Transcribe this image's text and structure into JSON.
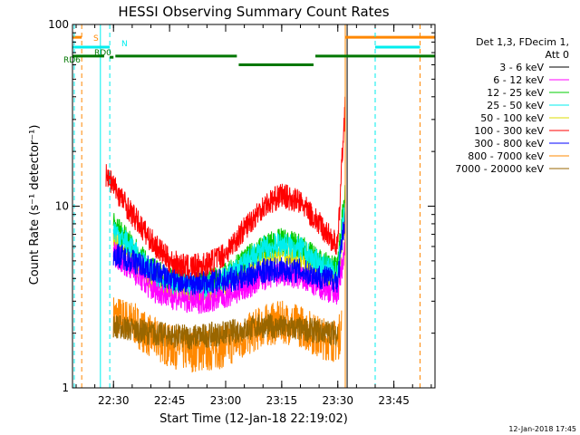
{
  "chart_data": {
    "type": "line",
    "title": "HESSI Observing Summary Count Rates",
    "xlabel": "Start Time (12-Jan-18 22:19:02)",
    "ylabel": "Count Rate (s⁻¹ detector⁻¹)",
    "y_scale": "log",
    "ylim": [
      1,
      100
    ],
    "xlim": [
      "22:19:02",
      "23:56:00"
    ],
    "x_ticks": [
      "22:30",
      "22:45",
      "23:00",
      "23:15",
      "23:30",
      "23:45"
    ],
    "y_ticks": [
      "1",
      "10",
      "100"
    ],
    "grid": false,
    "legend_position": "right",
    "legend_header": [
      "Det 1,3, FDecim 1,",
      "Att 0"
    ],
    "timestamp": "12-Jan-2018 17:45",
    "series": [
      {
        "name": "3 - 6 keV",
        "color": "#000000",
        "x": [],
        "y": []
      },
      {
        "name": "6 - 12 keV",
        "color": "#ff00ff",
        "x": [
          "22:30",
          "22:35",
          "22:40",
          "22:45",
          "22:50",
          "22:55",
          "23:00",
          "23:05",
          "23:10",
          "23:15",
          "23:20",
          "23:25",
          "23:30",
          "23:31",
          "23:32"
        ],
        "y": [
          5.5,
          4.5,
          3.5,
          3.2,
          3.0,
          3.0,
          3.2,
          3.5,
          4.0,
          4.2,
          4.0,
          3.6,
          3.3,
          4.5,
          6.0
        ]
      },
      {
        "name": "12 - 25 keV",
        "color": "#00cc00",
        "x": [
          "22:30",
          "22:35",
          "22:40",
          "22:45",
          "22:50",
          "22:55",
          "23:00",
          "23:05",
          "23:10",
          "23:15",
          "23:20",
          "23:25",
          "23:30",
          "23:31",
          "23:32"
        ],
        "y": [
          8.0,
          6.0,
          4.5,
          4.0,
          3.8,
          3.8,
          4.2,
          5.0,
          6.0,
          6.5,
          6.0,
          5.0,
          4.5,
          8.0,
          12.0
        ]
      },
      {
        "name": "25 - 50 keV",
        "color": "#00eeee",
        "x": [
          "22:30",
          "22:35",
          "22:40",
          "22:45",
          "22:50",
          "22:55",
          "23:00",
          "23:05",
          "23:10",
          "23:15",
          "23:20",
          "23:25",
          "23:30",
          "23:31",
          "23:32"
        ],
        "y": [
          7.5,
          5.8,
          4.3,
          3.8,
          3.6,
          3.6,
          4.0,
          4.8,
          5.8,
          6.2,
          5.8,
          4.8,
          4.2,
          7.0,
          10.0
        ]
      },
      {
        "name": "50 - 100 keV",
        "color": "#dddd00",
        "x": [
          "22:30",
          "22:35",
          "22:40",
          "22:45",
          "22:50",
          "22:55",
          "23:00",
          "23:05",
          "23:10",
          "23:15",
          "23:20",
          "23:25",
          "23:30",
          "23:31",
          "23:32"
        ],
        "y": [
          6.5,
          5.0,
          4.0,
          3.6,
          3.4,
          3.4,
          3.8,
          4.4,
          5.2,
          5.6,
          5.2,
          4.4,
          3.9,
          6.0,
          9.0
        ]
      },
      {
        "name": "100 - 300 keV",
        "color": "#ff0000",
        "x": [
          "22:28",
          "22:30",
          "22:35",
          "22:40",
          "22:45",
          "22:50",
          "22:55",
          "23:00",
          "23:05",
          "23:10",
          "23:15",
          "23:20",
          "23:25",
          "23:30",
          "23:31",
          "23:32"
        ],
        "y": [
          15.0,
          13.0,
          9.0,
          6.5,
          5.0,
          4.6,
          4.8,
          5.5,
          7.5,
          10.0,
          11.5,
          10.5,
          8.0,
          6.0,
          16.0,
          38.0
        ]
      },
      {
        "name": "300 - 800 keV",
        "color": "#0000ff",
        "x": [
          "22:30",
          "22:35",
          "22:40",
          "22:45",
          "22:50",
          "22:55",
          "23:00",
          "23:05",
          "23:10",
          "23:15",
          "23:20",
          "23:25",
          "23:30",
          "23:31",
          "23:32"
        ],
        "y": [
          5.5,
          5.0,
          4.5,
          4.0,
          3.8,
          3.8,
          3.9,
          4.1,
          4.4,
          4.5,
          4.4,
          4.1,
          3.9,
          6.0,
          9.0
        ]
      },
      {
        "name": "800 - 7000 keV",
        "color": "#ff8800",
        "x": [
          "22:30",
          "22:35",
          "22:40",
          "22:45",
          "22:50",
          "22:55",
          "23:00",
          "23:05",
          "23:10",
          "23:15",
          "23:20",
          "23:25",
          "23:30",
          "23:31"
        ],
        "y": [
          2.5,
          2.3,
          1.9,
          1.7,
          1.6,
          1.6,
          1.7,
          1.9,
          2.2,
          2.3,
          2.2,
          1.9,
          1.8,
          2.2
        ]
      },
      {
        "name": "7000 - 20000 keV",
        "color": "#996600",
        "x": [
          "22:30",
          "22:40",
          "22:50",
          "23:00",
          "23:10",
          "23:20",
          "23:30"
        ],
        "y": [
          2.2,
          2.0,
          1.9,
          2.0,
          2.2,
          2.1,
          2.0
        ]
      }
    ],
    "annotations": [
      {
        "label": "S",
        "color": "#ff8800",
        "segments": [
          [
            "22:19:02",
            "22:21:30"
          ],
          [
            "23:32:00",
            "23:56:00"
          ]
        ],
        "level": 85,
        "vlines": [
          "22:21:30",
          "23:52:00"
        ]
      },
      {
        "label": "N",
        "color": "#00eeee",
        "segments": [
          [
            "22:19:02",
            "22:29:00"
          ],
          [
            "23:40:00",
            "23:52:00"
          ]
        ],
        "level": 75,
        "vlines": [
          "22:19:30",
          "22:29:00",
          "23:40:00"
        ]
      },
      {
        "label": "RD0",
        "color": "#007700",
        "segments": [
          [
            "22:29:00",
            "22:30:00"
          ]
        ],
        "level": 66,
        "vlines": []
      },
      {
        "label": "RD6",
        "color": "#007700",
        "segments": [
          [
            "22:19:02",
            "22:27:30"
          ],
          [
            "22:30:30",
            "23:03:00"
          ],
          [
            "23:03:30",
            "23:23:30"
          ],
          [
            "23:24:00",
            "23:56:00"
          ]
        ],
        "level": [
          67,
          67,
          60,
          67
        ],
        "vlines": []
      }
    ],
    "vertical_markers": [
      {
        "color": "#00eeee",
        "x": "22:26:30"
      },
      {
        "color": "#ff8800",
        "x": "23:32:00"
      },
      {
        "color": "#000000",
        "x": "23:32:30"
      }
    ]
  }
}
